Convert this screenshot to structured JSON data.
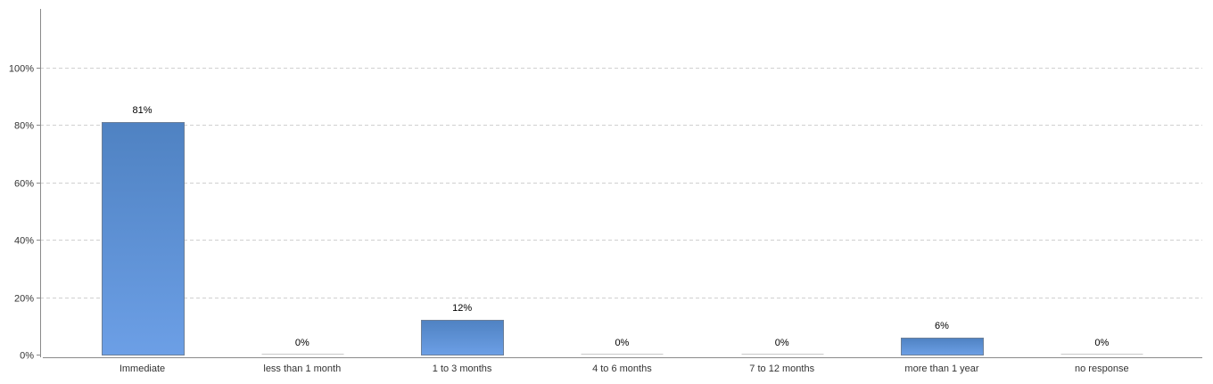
{
  "chart_data": {
    "type": "bar",
    "title": "",
    "xlabel": "",
    "ylabel": "",
    "ylim": [
      0,
      120
    ],
    "yticks": [
      0,
      20,
      40,
      60,
      80,
      100
    ],
    "ytick_labels": [
      "0%",
      "20%",
      "40%",
      "60%",
      "80%",
      "100%"
    ],
    "grid": true,
    "categories": [
      "Immediate",
      "less than 1 month",
      "1 to 3 months",
      "4 to 6 months",
      "7 to 12 months",
      "more than 1 year",
      "no response"
    ],
    "values": [
      81,
      0,
      12,
      0,
      0,
      6,
      0
    ],
    "value_labels": [
      "81%",
      "0%",
      "12%",
      "0%",
      "0%",
      "6%",
      "0%"
    ],
    "colors": {
      "bar_top": "#4f82c2",
      "bar_bottom": "#6c9fe6",
      "bar_edge": "#6b7f99",
      "zero_bar": "#c8c8c8",
      "grid": "#d0d0d0",
      "axis": "#8a8a8a",
      "text": "#333333"
    }
  }
}
